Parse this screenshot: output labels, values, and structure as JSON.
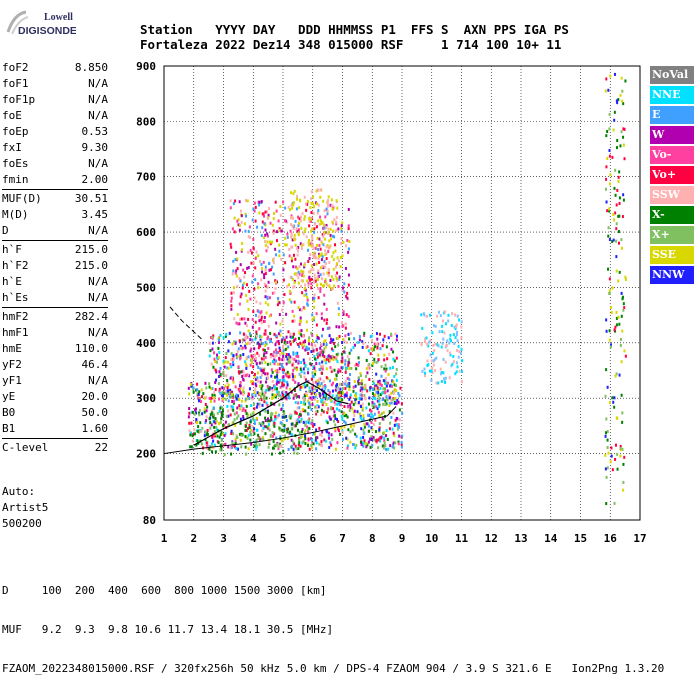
{
  "logo": {
    "line1": "Lowell",
    "line2": "DIGISONDE"
  },
  "header": {
    "line1": "Station   YYYY DAY   DDD HHMMSS P1  FFS S  AXN PPS IGA PS",
    "line2": "Fortaleza 2022 Dez14 348 015000 RSF     1 714 100 10+ 11"
  },
  "params": {
    "group1": [
      [
        "foF2",
        "8.850"
      ],
      [
        "foF1",
        "N/A"
      ],
      [
        "foF1p",
        "N/A"
      ],
      [
        "foE",
        "N/A"
      ],
      [
        "foEp",
        "0.53"
      ],
      [
        "fxI",
        "9.30"
      ],
      [
        "foEs",
        "N/A"
      ],
      [
        "fmin",
        "2.00"
      ]
    ],
    "group2": [
      [
        "MUF(D)",
        "30.51"
      ],
      [
        "M(D)",
        "3.45"
      ],
      [
        "D",
        "N/A"
      ]
    ],
    "group3": [
      [
        "h`F",
        "215.0"
      ],
      [
        "h`F2",
        "215.0"
      ],
      [
        "h`E",
        "N/A"
      ],
      [
        "h`Es",
        "N/A"
      ]
    ],
    "group4": [
      [
        "hmF2",
        "282.4"
      ],
      [
        "hmF1",
        "N/A"
      ],
      [
        "hmE",
        "110.0"
      ],
      [
        "yF2",
        "46.4"
      ],
      [
        "yF1",
        "N/A"
      ],
      [
        "yE",
        "20.0"
      ],
      [
        "B0",
        "50.0"
      ],
      [
        "B1",
        "1.60"
      ]
    ],
    "group5": [
      [
        "C-level",
        "22"
      ]
    ]
  },
  "auto": {
    "line1": "Auto:",
    "line2": "Artist5",
    "line3": "500200"
  },
  "legend": [
    {
      "label": "NoVal",
      "color": "#808080"
    },
    {
      "label": "NNE",
      "color": "#00e0ff"
    },
    {
      "label": "E",
      "color": "#40a0ff"
    },
    {
      "label": "W",
      "color": "#b000b0"
    },
    {
      "label": "Vo-",
      "color": "#ff40a0"
    },
    {
      "label": "Vo+",
      "color": "#ff0040"
    },
    {
      "label": "SSW",
      "color": "#ffb0b0"
    },
    {
      "label": "X-",
      "color": "#008000"
    },
    {
      "label": "X+",
      "color": "#80c060"
    },
    {
      "label": "SSE",
      "color": "#d8d800"
    },
    {
      "label": "NNW",
      "color": "#2020ff"
    }
  ],
  "chart_data": {
    "type": "scatter",
    "x_ticks": [
      "1",
      "2",
      "3",
      "4",
      "5",
      "6",
      "7",
      "8",
      "9",
      "10",
      "11",
      "12",
      "13",
      "14",
      "15",
      "16",
      "17"
    ],
    "y_ticks": [
      "80",
      "200",
      "300",
      "400",
      "500",
      "600",
      "700",
      "800",
      "900"
    ],
    "xlim": [
      1,
      17
    ],
    "ylim": [
      80,
      900
    ],
    "grid": true,
    "trace_o": [
      [
        1.0,
        200
      ],
      [
        2.0,
        208
      ],
      [
        3.0,
        214
      ],
      [
        4.0,
        220
      ],
      [
        5.0,
        228
      ],
      [
        6.0,
        238
      ],
      [
        7.0,
        250
      ],
      [
        8.0,
        262
      ],
      [
        8.5,
        268
      ],
      [
        8.8,
        285
      ]
    ],
    "profile_dashed": [
      [
        1.2,
        465
      ],
      [
        1.6,
        440
      ],
      [
        2.0,
        420
      ],
      [
        2.3,
        405
      ]
    ],
    "profile_solid": [
      [
        2.0,
        215
      ],
      [
        3.0,
        245
      ],
      [
        4.0,
        268
      ],
      [
        5.0,
        300
      ],
      [
        5.5,
        322
      ],
      [
        5.8,
        330
      ],
      [
        6.2,
        318
      ],
      [
        6.8,
        295
      ],
      [
        7.2,
        290
      ]
    ]
  },
  "bottom": {
    "d_line": "D     100  200  400  600  800 1000 1500 3000 [km]",
    "muf_line": "MUF   9.2  9.3  9.8 10.6 11.7 13.4 18.1 30.5 [MHz]",
    "file_line": "FZAOM_2022348015000.RSF / 320fx256h 50 kHz 5.0 km / DPS-4 FZAOM 904 / 3.9 S 321.6 E   Ion2Png 1.3.20"
  }
}
